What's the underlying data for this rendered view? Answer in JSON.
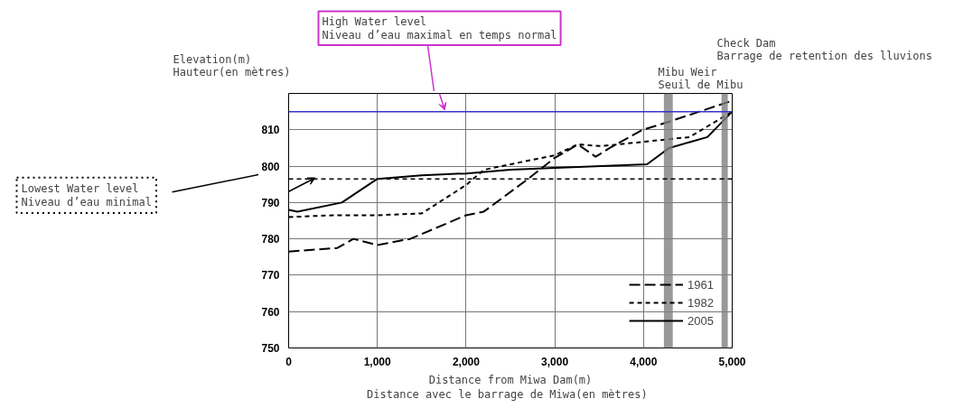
{
  "chart_data": {
    "type": "line",
    "xlabel": "Distance from Miwa Dam(m)\nDistance avec le  barrage de Miwa(en mètres)",
    "ylabel": "Elevation(m)\nHauteur(en mètres)",
    "xlim": [
      0,
      5000
    ],
    "ylim": [
      750,
      820
    ],
    "xticks": [
      0,
      {
        "value": 1000,
        "label": "1,000"
      },
      {
        "value": 2000,
        "label": "2,000"
      },
      {
        "value": 3000,
        "label": "3,000"
      },
      {
        "value": 4000,
        "label": "4,000"
      },
      {
        "value": 5000,
        "label": "5,000"
      }
    ],
    "yticks": [
      750,
      760,
      770,
      780,
      790,
      800,
      810,
      {
        "value": 820,
        "label": null
      }
    ],
    "grid": true,
    "legend": "bottom right",
    "marker": "none",
    "series": [
      {
        "name": "1961",
        "color": "#000000",
        "line_style": "dashed",
        "x": [
          0,
          550,
          730,
          1000,
          1370,
          2000,
          2200,
          2700,
          3000,
          3090,
          3260,
          3460,
          3620,
          3990,
          4260,
          5000
        ],
        "values": [
          776.5,
          777.5,
          780,
          778.3,
          780,
          786.5,
          787.5,
          796.5,
          802.3,
          803.5,
          806,
          802.6,
          805,
          810,
          812,
          818
        ]
      },
      {
        "name": "1982",
        "color": "#000000",
        "line_style": "dotted",
        "x": [
          0,
          500,
          1000,
          1500,
          2000,
          2200,
          3000,
          3260,
          3520,
          4520,
          5000
        ],
        "values": [
          786,
          786.5,
          786.5,
          787,
          794.8,
          799,
          803,
          806,
          805.5,
          808,
          815
        ]
      },
      {
        "name": "2005",
        "color": "#000000",
        "line_style": "solid",
        "x": [
          0,
          100,
          600,
          1000,
          1500,
          2000,
          2500,
          3000,
          4040,
          4290,
          4720,
          5000
        ],
        "values": [
          788,
          787.5,
          790,
          796.5,
          797.5,
          798,
          799,
          799.5,
          800.5,
          805,
          808,
          815
        ]
      }
    ],
    "ref_lines": [
      {
        "axis": "y",
        "value": 815,
        "color": "#3333cc",
        "line_style": "solid"
      },
      {
        "axis": "y",
        "value": 796.5,
        "color": "#000000",
        "line_style": "dotted"
      }
    ],
    "annotations": [
      "High Water level\nNiveau d’eau maximal en temps normal",
      "Lowest Water level\nNiveau d’eau minimal"
    ],
    "bands": [
      {
        "axis": "x",
        "from": 4230,
        "to": 4330,
        "label": "Mibu Weir\nSeuil de Mibu",
        "color": "#808080"
      },
      {
        "axis": "x",
        "from": 4880,
        "to": 4950,
        "label": "Check Dam\nBarrage de retention des lluvions",
        "color": "#808080"
      }
    ]
  }
}
